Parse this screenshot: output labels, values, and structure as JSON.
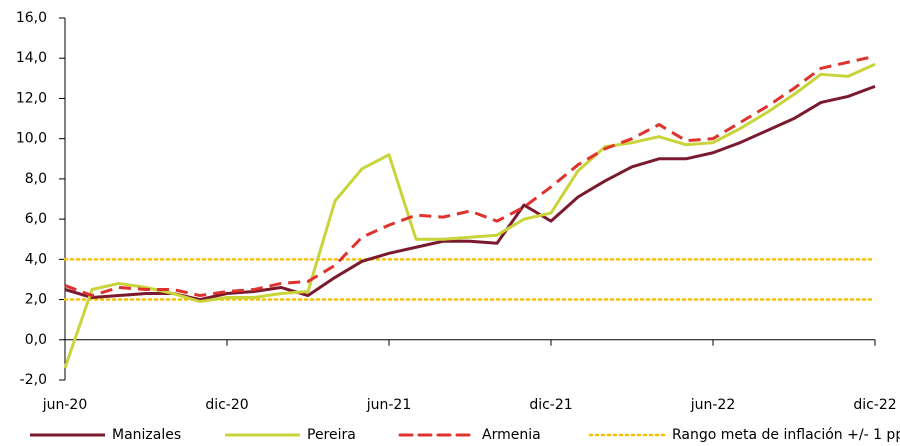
{
  "chart_data": {
    "type": "line",
    "categories": [
      "jun-20",
      null,
      null,
      null,
      null,
      null,
      "dic-20",
      null,
      null,
      null,
      null,
      null,
      "jun-21",
      null,
      null,
      null,
      null,
      null,
      "dic-21",
      null,
      null,
      null,
      null,
      null,
      "jun-22",
      null,
      null,
      null,
      null,
      null,
      "dic-22"
    ],
    "series": [
      {
        "name": "Manizales",
        "color": "#7b1a2e",
        "dash": false,
        "values": [
          2.5,
          2.1,
          2.2,
          2.3,
          2.3,
          2.0,
          2.3,
          2.4,
          2.6,
          2.2,
          3.1,
          3.9,
          4.3,
          4.6,
          4.9,
          4.9,
          4.8,
          6.7,
          5.9,
          7.1,
          7.9,
          8.6,
          9.0,
          9.0,
          9.3,
          9.8,
          10.4,
          11.0,
          11.8,
          12.1,
          12.6
        ]
      },
      {
        "name": "Pereira",
        "color": "#c8d43a",
        "dash": false,
        "values": [
          -1.4,
          2.5,
          2.8,
          2.6,
          2.3,
          1.9,
          2.1,
          2.1,
          2.3,
          2.4,
          6.9,
          8.5,
          9.2,
          5.0,
          5.0,
          5.1,
          5.2,
          6.0,
          6.3,
          8.4,
          9.6,
          9.8,
          10.1,
          9.7,
          9.8,
          10.5,
          11.3,
          12.2,
          13.2,
          13.1,
          13.7
        ]
      },
      {
        "name": "Armenia",
        "color": "#e0322c",
        "dash": true,
        "values": [
          2.7,
          2.2,
          2.6,
          2.5,
          2.5,
          2.2,
          2.4,
          2.5,
          2.8,
          2.9,
          3.7,
          5.1,
          5.7,
          6.2,
          6.1,
          6.4,
          5.9,
          6.6,
          7.6,
          8.7,
          9.5,
          10.0,
          10.7,
          9.9,
          10.0,
          10.8,
          11.6,
          12.5,
          13.5,
          13.8,
          14.1
        ]
      }
    ],
    "target_band": {
      "name": "Rango meta de inflación +/- 1 pp",
      "color": "#f5c000",
      "values": [
        2,
        4
      ]
    },
    "ylim": [
      -2,
      16
    ],
    "yticks": [
      {
        "value": -2,
        "label": "-2,0"
      },
      {
        "value": 0,
        "label": "0,0"
      },
      {
        "value": 2,
        "label": "2,0"
      },
      {
        "value": 4,
        "label": "4,0"
      },
      {
        "value": 6,
        "label": "6,0"
      },
      {
        "value": 8,
        "label": "8,0"
      },
      {
        "value": 10,
        "label": "10,0"
      },
      {
        "value": 12,
        "label": "12,0"
      },
      {
        "value": 14,
        "label": "14,0"
      },
      {
        "value": 16,
        "label": "16,0"
      }
    ],
    "legend": "bottom"
  }
}
